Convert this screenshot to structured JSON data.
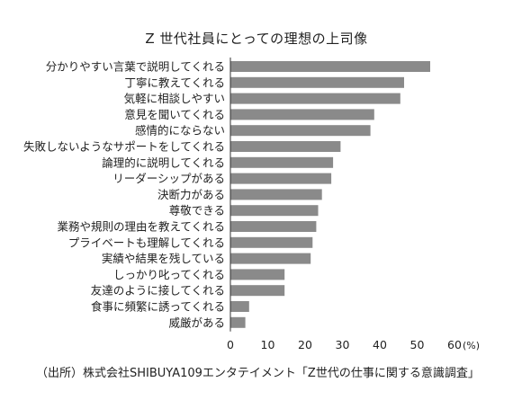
{
  "chart_data": {
    "type": "bar",
    "orientation": "horizontal",
    "title": "Z 世代社員にとっての理想の上司像",
    "categories": [
      "分かりやすい言葉で説明してくれる",
      "丁寧に教えてくれる",
      "気軽に相談しやすい",
      "意見を聞いてくれる",
      "感情的にならない",
      "失敗しないようなサポートをしてくれる",
      "論理的に説明してくれる",
      "リーダーシップがある",
      "決断力がある",
      "尊敬できる",
      "業務や規則の理由を教えてくれる",
      "プライベートも理解してくれる",
      "実績や結果を残している",
      "しっかり叱ってくれる",
      "友達のように接してくれる",
      "食事に頻繁に誘ってくれる",
      "威厳がある"
    ],
    "values": [
      53.5,
      46.5,
      45.5,
      38.5,
      37.5,
      29.5,
      27.5,
      27.0,
      24.5,
      23.5,
      23.0,
      22.0,
      21.5,
      14.5,
      14.5,
      5.0,
      4.0
    ],
    "xlim": [
      0,
      60
    ],
    "xticks": [
      0,
      10,
      20,
      30,
      40,
      50,
      60
    ],
    "unit": "(%)",
    "grid": false,
    "bar_color": "#8a8a8a"
  },
  "source": "（出所）株式会社SHIBUYA109エンタテイメント「Z世代の仕事に関する意識調査」"
}
